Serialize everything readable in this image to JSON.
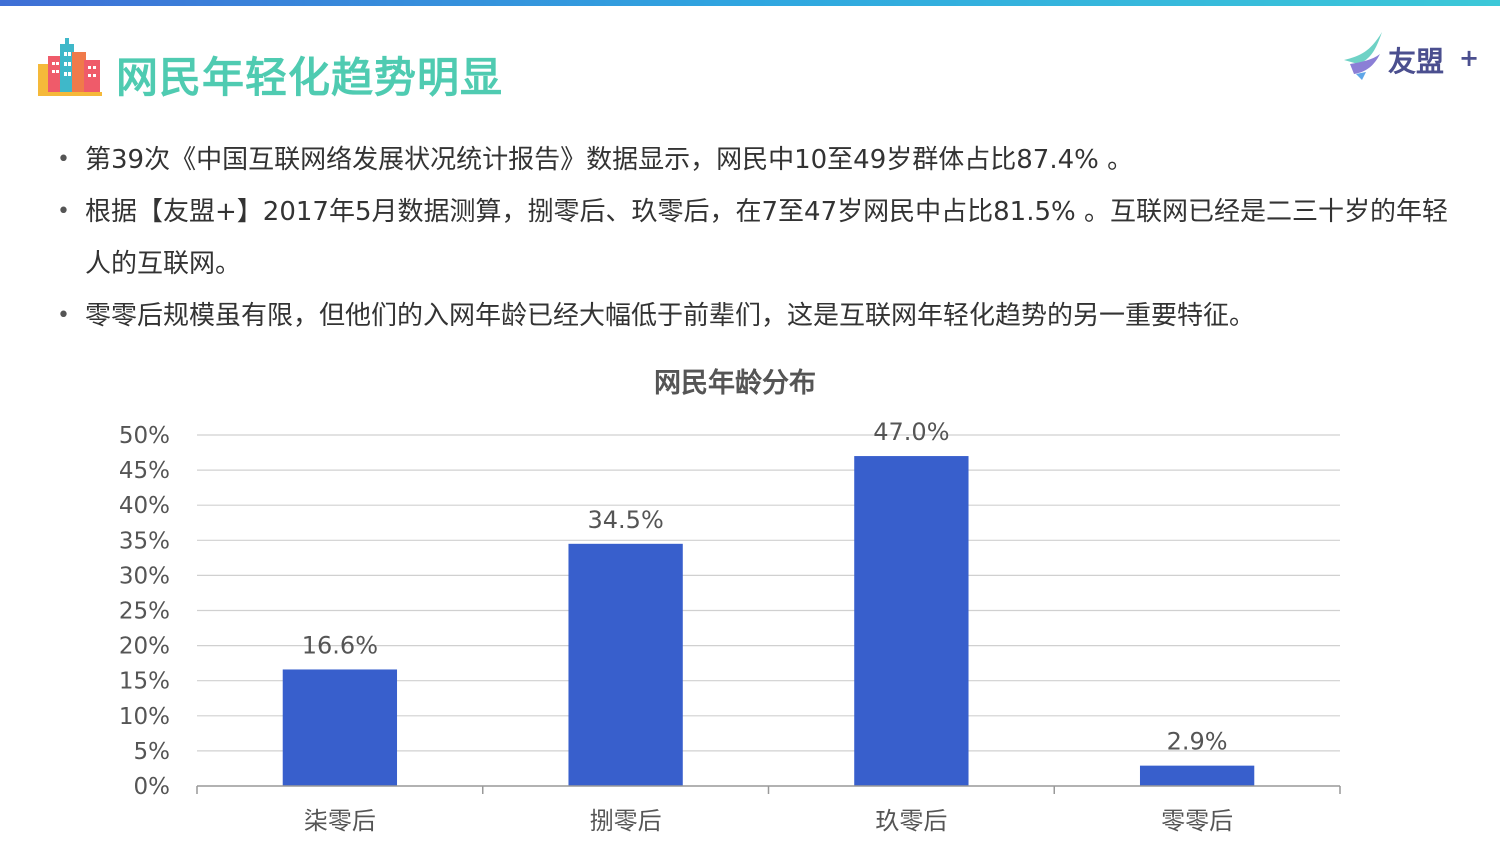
{
  "header": {
    "title": "网民年轻化趋势明显",
    "logo_text": "友盟",
    "logo_plus": "+"
  },
  "colors": {
    "title": "#4fcbb1",
    "bar": "#385fcc",
    "grid": "#d0d0d0",
    "axis": "#999999"
  },
  "icons": {
    "title_icon": "city-buildings-icon",
    "logo_icon": "umeng-swallow-logo-icon"
  },
  "bullets": [
    "第39次《中国互联网络发展状况统计报告》数据显示，网民中10至49岁群体占比87.4% 。",
    "根据【友盟+】2017年5月数据测算，捌零后、玖零后，在7至47岁网民中占比81.5% 。互联网已经是二三十岁的年轻人的互联网。",
    "零零后规模虽有限，但他们的入网年龄已经大幅低于前辈们，这是互联网年轻化趋势的另一重要特征。"
  ],
  "chart_data": {
    "type": "bar",
    "title": "网民年龄分布",
    "categories": [
      "柒零后",
      "捌零后",
      "玖零后",
      "零零后"
    ],
    "values": [
      16.6,
      34.5,
      47.0,
      2.9
    ],
    "value_labels": [
      "16.6%",
      "34.5%",
      "47.0%",
      "2.9%"
    ],
    "y_ticks": [
      "0%",
      "5%",
      "10%",
      "15%",
      "20%",
      "25%",
      "30%",
      "35%",
      "40%",
      "45%",
      "50%"
    ],
    "ylim": [
      0,
      50
    ],
    "grid": true,
    "legend": "none"
  }
}
